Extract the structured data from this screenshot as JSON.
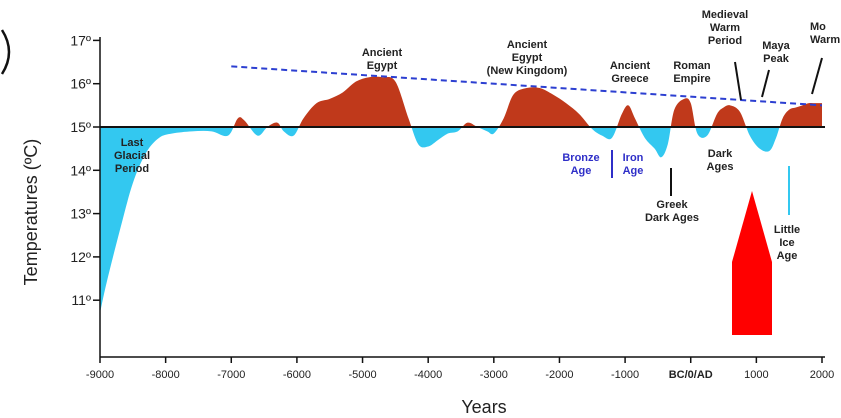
{
  "chart_data": {
    "type": "area",
    "ylabel": "Temperatures (ºC)",
    "xlabel": "Years",
    "baseline": 15,
    "ylim": [
      10,
      17.2
    ],
    "xlim": [
      -9000,
      2000
    ],
    "y_ticks": [
      {
        "value": 11,
        "label": "11º"
      },
      {
        "value": 12,
        "label": "12º"
      },
      {
        "value": 13,
        "label": "13º"
      },
      {
        "value": 14,
        "label": "14º"
      },
      {
        "value": 15,
        "label": "15º"
      },
      {
        "value": 16,
        "label": "16º"
      },
      {
        "value": 17,
        "label": "17º"
      }
    ],
    "x_ticks": [
      {
        "value": -9000,
        "label": "-9000"
      },
      {
        "value": -8000,
        "label": "-8000"
      },
      {
        "value": -7000,
        "label": "-7000"
      },
      {
        "value": -6000,
        "label": "-6000"
      },
      {
        "value": -5000,
        "label": "-5000"
      },
      {
        "value": -4000,
        "label": "-4000"
      },
      {
        "value": -3000,
        "label": "-3000"
      },
      {
        "value": -2000,
        "label": "-2000"
      },
      {
        "value": -1000,
        "label": "-1000"
      },
      {
        "value": 0,
        "label": "BC/0/AD"
      },
      {
        "value": 1000,
        "label": "1000"
      },
      {
        "value": 2000,
        "label": "2000"
      }
    ],
    "series": [
      {
        "x": [
          -9000,
          -8900,
          -8700,
          -8500,
          -8300,
          -8100,
          -7900,
          -7600,
          -7300,
          -7050,
          -6900,
          -6800,
          -6600,
          -6450,
          -6300,
          -6200,
          -6050,
          -5900,
          -5700,
          -5500,
          -5300,
          -5100,
          -4900,
          -4700,
          -4500,
          -4300,
          -4150,
          -4000,
          -3850,
          -3700,
          -3550,
          -3400,
          -3250,
          -3100,
          -3000,
          -2850,
          -2700,
          -2500,
          -2300,
          -2100,
          -1900,
          -1700,
          -1500,
          -1350,
          -1200,
          -1050,
          -950,
          -850,
          -700,
          -550,
          -450,
          -350,
          -250,
          -100,
          0,
          100,
          250,
          400,
          500,
          600,
          750,
          900,
          1050,
          1200,
          1300,
          1400,
          1500,
          1600,
          1700,
          1800,
          1900,
          2000
        ],
        "y": [
          10.7,
          11.4,
          12.6,
          13.7,
          14.4,
          14.75,
          14.85,
          14.9,
          14.9,
          14.8,
          15.2,
          15.15,
          14.8,
          15.0,
          15.1,
          14.9,
          14.8,
          15.2,
          15.55,
          15.65,
          15.8,
          16.05,
          16.15,
          16.15,
          16.05,
          15.2,
          14.6,
          14.55,
          14.7,
          14.85,
          14.9,
          15.1,
          15.0,
          14.9,
          14.85,
          15.2,
          15.75,
          15.9,
          15.9,
          15.75,
          15.55,
          15.3,
          14.95,
          14.8,
          14.75,
          15.3,
          15.5,
          15.2,
          14.75,
          14.5,
          14.3,
          14.6,
          15.4,
          15.65,
          15.55,
          14.85,
          14.8,
          15.3,
          15.45,
          15.5,
          15.35,
          14.8,
          14.5,
          14.45,
          14.75,
          15.2,
          15.4,
          15.45,
          15.5,
          15.55,
          15.55,
          15.55
        ]
      }
    ],
    "trendline": {
      "x": [
        -7000,
        2000
      ],
      "y": [
        16.4,
        15.5
      ]
    },
    "colors": {
      "warm": "#c0391b",
      "cold": "#33c8f0",
      "trend": "#2c3fd1",
      "arrow": "#ff0000"
    },
    "annotations": [
      {
        "id": "last-glacial",
        "lines": [
          "Last",
          "Glacial",
          "Period"
        ],
        "style": "dark"
      },
      {
        "id": "ancient-egypt",
        "lines": [
          "Ancient",
          "Egypt"
        ],
        "style": "dark"
      },
      {
        "id": "ancient-egypt-nk",
        "lines": [
          "Ancient",
          "Egypt",
          "(New Kingdom)"
        ],
        "style": "dark"
      },
      {
        "id": "ancient-greece",
        "lines": [
          "Ancient",
          "Greece"
        ],
        "style": "dark"
      },
      {
        "id": "roman-empire",
        "lines": [
          "Roman",
          "Empire"
        ],
        "style": "dark"
      },
      {
        "id": "medieval-warm",
        "lines": [
          "Medieval",
          "Warm",
          "Period"
        ],
        "style": "dark"
      },
      {
        "id": "maya-peak",
        "lines": [
          "Maya",
          "Peak"
        ],
        "style": "dark"
      },
      {
        "id": "modern-warm",
        "lines": [
          "Mo",
          "Warm"
        ],
        "style": "dark"
      },
      {
        "id": "bronze-age",
        "lines": [
          "Bronze",
          "Age"
        ],
        "style": "blue"
      },
      {
        "id": "iron-age",
        "lines": [
          "Iron",
          "Age"
        ],
        "style": "blue"
      },
      {
        "id": "greek-dark-ages",
        "lines": [
          "Greek",
          "Dark Ages"
        ],
        "style": "dark"
      },
      {
        "id": "dark-ages",
        "lines": [
          "Dark",
          "Ages"
        ],
        "style": "dark"
      },
      {
        "id": "little-ice-age",
        "lines": [
          "Little",
          "Ice",
          "Age"
        ],
        "style": "dark"
      }
    ]
  }
}
